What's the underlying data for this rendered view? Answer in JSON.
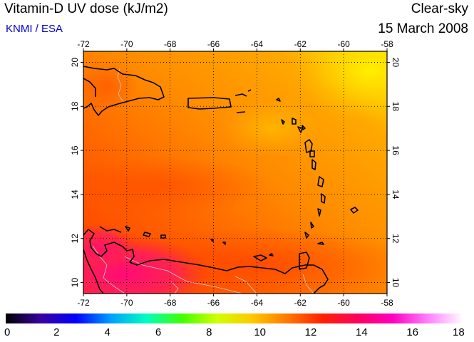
{
  "header": {
    "title": "Vitamin-D UV dose (kJ/m2)",
    "source": "KNMI / ESA",
    "mode": "Clear-sky",
    "date": "15 March 2008"
  },
  "map": {
    "lon_labels": [
      "-72",
      "-70",
      "-68",
      "-66",
      "-64",
      "-62",
      "-60",
      "-58"
    ],
    "lat_labels": [
      "10",
      "12",
      "14",
      "16",
      "18",
      "20"
    ],
    "extent": {
      "lon": [
        -72,
        -58
      ],
      "lat": [
        9.5,
        20.5
      ]
    },
    "grid": true,
    "colors": {
      "field_yellow": "#ffe600",
      "field_orange": "#ff9a00",
      "field_red": "#ff4a00",
      "field_magenta": "#ff1080",
      "coastline": "#000000",
      "borders": "#c8c8c8"
    }
  },
  "colorbar": {
    "labels": [
      "0",
      "2",
      "4",
      "6",
      "8",
      "10",
      "12",
      "14",
      "16",
      "18"
    ],
    "min": 0,
    "max": 18,
    "stops": [
      "#000000",
      "#3a00a0",
      "#0000ff",
      "#00a0ff",
      "#00ffc0",
      "#40ff00",
      "#d0ff00",
      "#ffc800",
      "#ff7800",
      "#ff2000",
      "#ff0060",
      "#ff00c0",
      "#ff80ff",
      "#ffffff"
    ]
  }
}
